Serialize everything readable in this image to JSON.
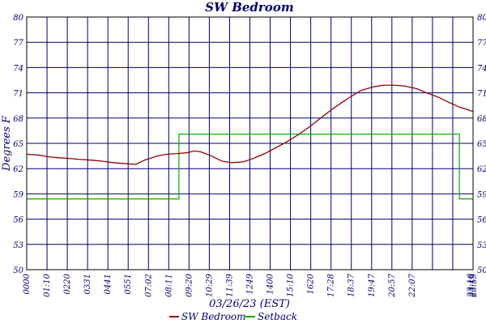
{
  "chart_data": {
    "type": "line",
    "title": "SW Bedroom",
    "ylabel": "Degrees F",
    "xlabel": "03/26/23 (EST)",
    "ylim": [
      50,
      80
    ],
    "yticks": [
      50,
      53,
      56,
      59,
      62,
      65,
      68,
      71,
      74,
      77,
      80
    ],
    "xlim": [
      "00:00",
      "24:00"
    ],
    "xticks": [
      "0000",
      "01:10",
      "0220",
      "0331",
      "0441",
      "0551",
      "07:02",
      "08:11",
      "09:20",
      "10:29",
      "11:39",
      "1249",
      "1400",
      "15:10",
      "1620",
      "17:28",
      "18:37",
      "19:47",
      "20:57",
      "22:07",
      "23:16",
      "23:17",
      "23:59"
    ],
    "grid": true,
    "legend_position": "bottom-center",
    "colors": {
      "title": "#00006e",
      "axis_text": "#00006e",
      "grid": "#00006e",
      "sw_bedroom": "#990000",
      "setback": "#00aa00"
    },
    "series": [
      {
        "name": "SW Bedroom",
        "x": [
          "00:00",
          "00:40",
          "01:10",
          "01:40",
          "02:20",
          "02:50",
          "03:31",
          "04:00",
          "04:41",
          "05:15",
          "05:51",
          "06:20",
          "07:02",
          "07:30",
          "08:11",
          "08:40",
          "09:00",
          "09:20",
          "09:50",
          "10:29",
          "11:00",
          "11:39",
          "12:10",
          "12:49",
          "13:20",
          "14:00",
          "14:35",
          "15:10",
          "15:45",
          "16:20",
          "16:55",
          "17:28",
          "18:00",
          "18:37",
          "19:10",
          "19:47",
          "20:20",
          "20:57",
          "21:30",
          "22:07",
          "22:40",
          "23:16",
          "23:59"
        ],
        "values": [
          63.7,
          63.6,
          63.4,
          63.3,
          63.2,
          63.1,
          63.0,
          62.9,
          62.7,
          62.6,
          62.5,
          63.0,
          63.5,
          63.7,
          63.8,
          63.9,
          64.1,
          64.0,
          63.6,
          62.9,
          62.7,
          62.8,
          63.2,
          63.8,
          64.4,
          65.2,
          66.0,
          66.9,
          67.9,
          68.9,
          69.8,
          70.6,
          71.3,
          71.7,
          71.9,
          71.9,
          71.8,
          71.5,
          71.0,
          70.5,
          69.9,
          69.3,
          68.8
        ]
      },
      {
        "name": "Setback",
        "step": true,
        "x": [
          "00:00",
          "08:11",
          "08:11",
          "23:16",
          "23:16",
          "23:59"
        ],
        "values": [
          58.4,
          58.4,
          66.1,
          66.1,
          58.4,
          58.4
        ]
      }
    ]
  }
}
